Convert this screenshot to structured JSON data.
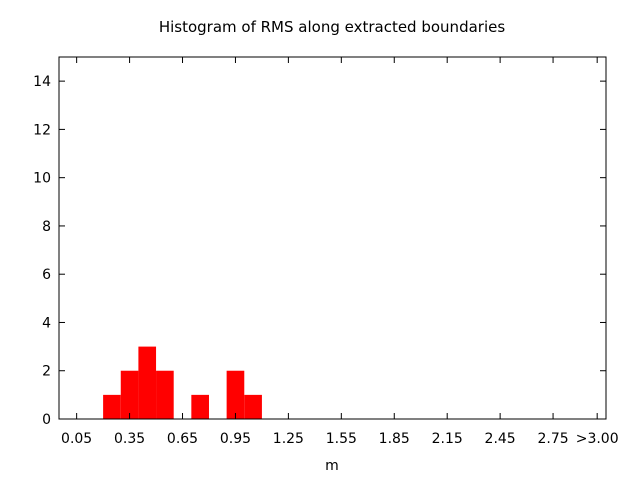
{
  "chart_data": {
    "type": "bar",
    "title": "Histogram of RMS along extracted boundaries",
    "xlabel": "m",
    "ylabel": "",
    "x_tick_labels": [
      "0.05",
      "0.35",
      "0.65",
      "0.95",
      "1.25",
      "1.55",
      "1.85",
      "2.15",
      "2.45",
      "2.75",
      ">3.00"
    ],
    "x_tick_values": [
      0.05,
      0.35,
      0.65,
      0.95,
      1.25,
      1.55,
      1.85,
      2.15,
      2.45,
      2.75,
      3.0
    ],
    "y_tick_labels": [
      "0",
      "2",
      "4",
      "6",
      "8",
      "10",
      "12",
      "14"
    ],
    "y_tick_values": [
      0,
      2,
      4,
      6,
      8,
      10,
      12,
      14
    ],
    "xlim": [
      -0.05,
      3.05
    ],
    "ylim": [
      0,
      15
    ],
    "bin_width": 0.1,
    "bins": [
      {
        "start": 0.2,
        "end": 0.3,
        "count": 1
      },
      {
        "start": 0.3,
        "end": 0.4,
        "count": 2
      },
      {
        "start": 0.4,
        "end": 0.5,
        "count": 3
      },
      {
        "start": 0.5,
        "end": 0.6,
        "count": 2
      },
      {
        "start": 0.7,
        "end": 0.8,
        "count": 1
      },
      {
        "start": 0.9,
        "end": 1.0,
        "count": 2
      },
      {
        "start": 1.0,
        "end": 1.1,
        "count": 1
      }
    ],
    "bar_color": "#ff0000",
    "grid": false,
    "legend": "none"
  }
}
